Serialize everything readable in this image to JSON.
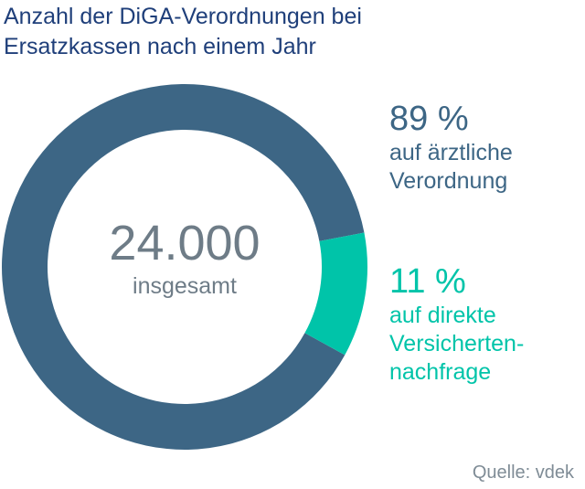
{
  "title_lines": [
    "Anzahl der DiGA-Verordnungen bei",
    "Ersatzkassen nach einem Jahr"
  ],
  "center": {
    "total": "24.000",
    "label": "insgesamt"
  },
  "shares": [
    {
      "pct_text": "89 %",
      "desc_lines": [
        "auf ärztliche",
        "Verordnung"
      ]
    },
    {
      "pct_text": "11 %",
      "desc_lines": [
        "auf direkte",
        "Versicherten-",
        "nachfrage"
      ]
    }
  ],
  "source": "Quelle: vdek",
  "colors": {
    "physician": "#3d6685",
    "direct": "#00c4a9",
    "title": "#1f3f7a",
    "gray_text": "#6e7c87"
  },
  "chart_data": {
    "type": "pie",
    "style": "donut",
    "total": 24000,
    "title": "Anzahl der DiGA-Verordnungen bei Ersatzkassen nach einem Jahr",
    "slices": [
      {
        "label": "auf ärztliche Verordnung",
        "value": 89,
        "unit": "%",
        "color": "#3d6685"
      },
      {
        "label": "auf direkte Versicherten-nachfrage",
        "value": 11,
        "unit": "%",
        "color": "#00c4a9"
      }
    ]
  }
}
